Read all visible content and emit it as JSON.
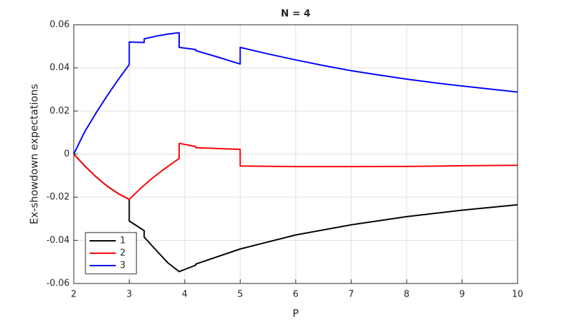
{
  "chart_data": {
    "type": "line",
    "title": "N = 4",
    "xlabel": "P",
    "ylabel": "Ex-showdown expectations",
    "xlim": [
      2,
      10
    ],
    "xticks": [
      2,
      3,
      4,
      5,
      6,
      7,
      8,
      9,
      10
    ],
    "ylim": [
      -0.06,
      0.06
    ],
    "yticks": [
      -0.06,
      -0.04,
      -0.02,
      0,
      0.02,
      0.04,
      0.06
    ],
    "grid": true,
    "legend_position": "lower left",
    "series": [
      {
        "name": "1",
        "color": "#000000",
        "x": [
          2,
          2.2,
          2.4,
          2.6,
          2.8,
          3,
          3,
          3.27,
          3.27,
          3.5,
          3.7,
          3.9,
          4.2,
          4.2,
          5,
          6,
          7,
          8,
          9,
          10
        ],
        "values": [
          0,
          -0.0055,
          -0.0105,
          -0.0148,
          -0.0183,
          -0.021,
          -0.031,
          -0.0355,
          -0.0385,
          -0.045,
          -0.0505,
          -0.0545,
          -0.0515,
          -0.051,
          -0.044,
          -0.0375,
          -0.0328,
          -0.029,
          -0.026,
          -0.0235
        ]
      },
      {
        "name": "2",
        "color": "#ff0000",
        "x": [
          2,
          2.2,
          2.4,
          2.6,
          2.8,
          3,
          3.2,
          3.4,
          3.6,
          3.9,
          3.9,
          4.2,
          4.2,
          5,
          5,
          6,
          7,
          8,
          9,
          10
        ],
        "values": [
          0,
          -0.0055,
          -0.0105,
          -0.0148,
          -0.0183,
          -0.021,
          -0.016,
          -0.0115,
          -0.0075,
          -0.002,
          0.005,
          0.0035,
          0.003,
          0.0022,
          -0.0055,
          -0.0058,
          -0.0058,
          -0.0057,
          -0.0054,
          -0.0052
        ]
      },
      {
        "name": "3",
        "color": "#0000ff",
        "x": [
          2,
          2.2,
          2.4,
          2.6,
          2.8,
          3,
          3,
          3.27,
          3.27,
          3.5,
          3.7,
          3.9,
          3.9,
          4.2,
          4.2,
          4.6,
          5,
          5,
          5.5,
          6,
          6.5,
          7,
          7.5,
          8,
          8.5,
          9,
          9.5,
          10
        ],
        "values": [
          0,
          0.0105,
          0.019,
          0.027,
          0.0345,
          0.0415,
          0.052,
          0.0518,
          0.0535,
          0.0548,
          0.0557,
          0.0563,
          0.0495,
          0.0485,
          0.048,
          0.045,
          0.0418,
          0.0495,
          0.0465,
          0.0437,
          0.0411,
          0.0387,
          0.0367,
          0.0348,
          0.0331,
          0.0316,
          0.0302,
          0.0288
        ]
      }
    ]
  }
}
